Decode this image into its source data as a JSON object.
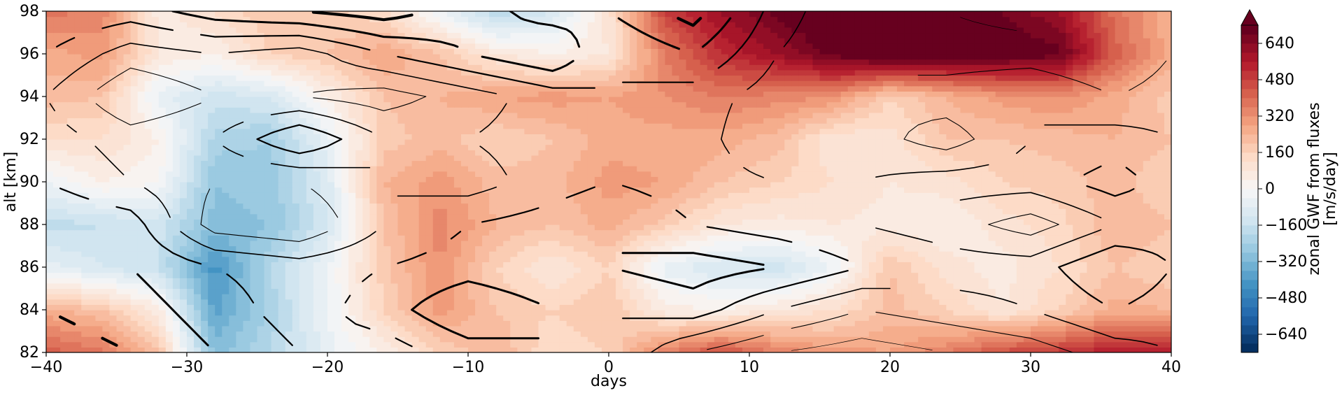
{
  "chart_data": {
    "type": "heatmap",
    "title": "",
    "xlabel": "days",
    "ylabel": "alt [km]",
    "colorbar_label_line1": "zonal GWF from fluxes",
    "colorbar_label_line2": "[m/s/day]",
    "xlim": [
      -40,
      40
    ],
    "ylim": [
      82,
      98
    ],
    "clim": [
      -720,
      720
    ],
    "x_ticks": [
      -40,
      -30,
      -20,
      -10,
      0,
      10,
      20,
      30,
      40
    ],
    "x_tick_labels": [
      "−40",
      "−30",
      "−20",
      "−10",
      "0",
      "10",
      "20",
      "30",
      "40"
    ],
    "y_ticks": [
      82,
      84,
      86,
      88,
      90,
      92,
      94,
      96,
      98
    ],
    "y_tick_labels": [
      "82",
      "84",
      "86",
      "88",
      "90",
      "92",
      "94",
      "96",
      "98"
    ],
    "colorbar_ticks": [
      -640,
      -480,
      -320,
      -160,
      0,
      160,
      320,
      480,
      640
    ],
    "colorbar_tick_labels": [
      "−640",
      "−480",
      "−320",
      "−160",
      "0",
      "160",
      "320",
      "480",
      "640"
    ],
    "colormap": "RdBu_r",
    "extend": "max",
    "x": [
      -40,
      -36,
      -32,
      -28,
      -24,
      -20,
      -16,
      -12,
      -8,
      -4,
      0,
      4,
      8,
      12,
      16,
      20,
      24,
      28,
      32,
      36,
      40
    ],
    "y": [
      82,
      84,
      86,
      88,
      90,
      92,
      94,
      96,
      98
    ],
    "z": [
      [
        420,
        380,
        200,
        -300,
        -200,
        -60,
        40,
        160,
        240,
        120,
        160,
        360,
        460,
        360,
        300,
        280,
        360,
        460,
        500,
        560,
        540
      ],
      [
        260,
        200,
        60,
        -380,
        -220,
        -40,
        160,
        300,
        200,
        160,
        200,
        60,
        40,
        80,
        120,
        220,
        160,
        80,
        160,
        260,
        240
      ],
      [
        -60,
        -120,
        -160,
        -420,
        -200,
        -40,
        180,
        320,
        160,
        80,
        160,
        -60,
        -120,
        -140,
        -40,
        200,
        100,
        60,
        120,
        200,
        160
      ],
      [
        -180,
        -160,
        -140,
        -300,
        -280,
        -120,
        200,
        340,
        240,
        200,
        260,
        180,
        80,
        60,
        80,
        60,
        40,
        100,
        140,
        240,
        200
      ],
      [
        -40,
        40,
        0,
        -280,
        -260,
        -100,
        240,
        300,
        220,
        220,
        300,
        280,
        200,
        160,
        120,
        80,
        100,
        160,
        180,
        220,
        160
      ],
      [
        120,
        120,
        40,
        -220,
        -240,
        -60,
        180,
        220,
        160,
        200,
        260,
        260,
        260,
        220,
        80,
        100,
        200,
        200,
        220,
        240,
        200
      ],
      [
        220,
        200,
        -60,
        -140,
        -120,
        40,
        200,
        240,
        280,
        300,
        280,
        320,
        360,
        340,
        320,
        160,
        240,
        300,
        320,
        260,
        180
      ],
      [
        260,
        300,
        80,
        40,
        160,
        200,
        280,
        200,
        80,
        40,
        80,
        360,
        520,
        600,
        700,
        760,
        740,
        720,
        700,
        420,
        260
      ],
      [
        380,
        340,
        60,
        120,
        200,
        180,
        120,
        -40,
        -200,
        -120,
        100,
        480,
        600,
        700,
        760,
        720,
        700,
        680,
        600,
        380,
        240
      ]
    ],
    "contour_levels": [
      {
        "level": -1.0,
        "stroke": 4.2
      },
      {
        "level": -0.6,
        "stroke": 3.0
      },
      {
        "level": -0.2,
        "stroke": 2.2
      },
      {
        "level": 0.2,
        "stroke": 1.6
      },
      {
        "level": 0.6,
        "stroke": 1.1
      },
      {
        "level": 1.0,
        "stroke": 0.7
      }
    ],
    "contour_field": {
      "x": [
        -40,
        -34,
        -28,
        -22,
        -16,
        -10,
        -4,
        0,
        6,
        12,
        18,
        24,
        30,
        36,
        40
      ],
      "y": [
        82,
        84,
        86,
        88,
        90,
        92,
        94,
        96,
        98
      ],
      "z": [
        [
          -1.2,
          -1.0,
          -0.6,
          -0.2,
          0.0,
          -0.4,
          -0.6,
          -0.2,
          0.6,
          1.0,
          1.2,
          1.0,
          0.8,
          0.4,
          0.2
        ],
        [
          -1.0,
          -0.8,
          -0.4,
          0.0,
          -0.4,
          -1.0,
          -0.6,
          -0.2,
          -0.4,
          0.2,
          0.6,
          0.4,
          0.2,
          -0.2,
          0.0
        ],
        [
          -0.6,
          -0.6,
          -0.2,
          0.0,
          -0.2,
          -0.4,
          -0.2,
          -0.6,
          -0.8,
          -0.6,
          -0.2,
          0.0,
          0.0,
          -0.6,
          -0.2
        ],
        [
          -0.6,
          -0.4,
          0.8,
          1.0,
          0.2,
          -0.2,
          -0.4,
          -0.6,
          -0.2,
          0.0,
          0.2,
          0.4,
          0.8,
          0.2,
          0.0
        ],
        [
          -0.2,
          0.2,
          0.6,
          0.6,
          0.2,
          0.4,
          0.0,
          -0.2,
          0.0,
          0.2,
          0.2,
          0.0,
          0.0,
          -0.4,
          0.0
        ],
        [
          0.0,
          0.4,
          0.2,
          -0.6,
          0.2,
          0.2,
          0.0,
          -0.2,
          0.0,
          0.6,
          0.4,
          0.8,
          0.2,
          0.0,
          0.2
        ],
        [
          0.2,
          1.0,
          0.6,
          0.6,
          0.8,
          0.4,
          0.0,
          -0.2,
          0.0,
          0.4,
          0.6,
          0.4,
          0.2,
          0.6,
          0.4
        ],
        [
          -0.2,
          0.4,
          0.2,
          0.4,
          -0.2,
          -0.6,
          -1.0,
          -0.2,
          -0.6,
          0.2,
          0.6,
          0.8,
          0.8,
          1.0,
          0.6
        ],
        [
          -0.6,
          -0.4,
          -0.8,
          -1.0,
          -1.2,
          -0.8,
          -0.4,
          -0.6,
          -1.2,
          0.0,
          0.6,
          1.0,
          1.2,
          1.0,
          0.6
        ]
      ]
    }
  }
}
